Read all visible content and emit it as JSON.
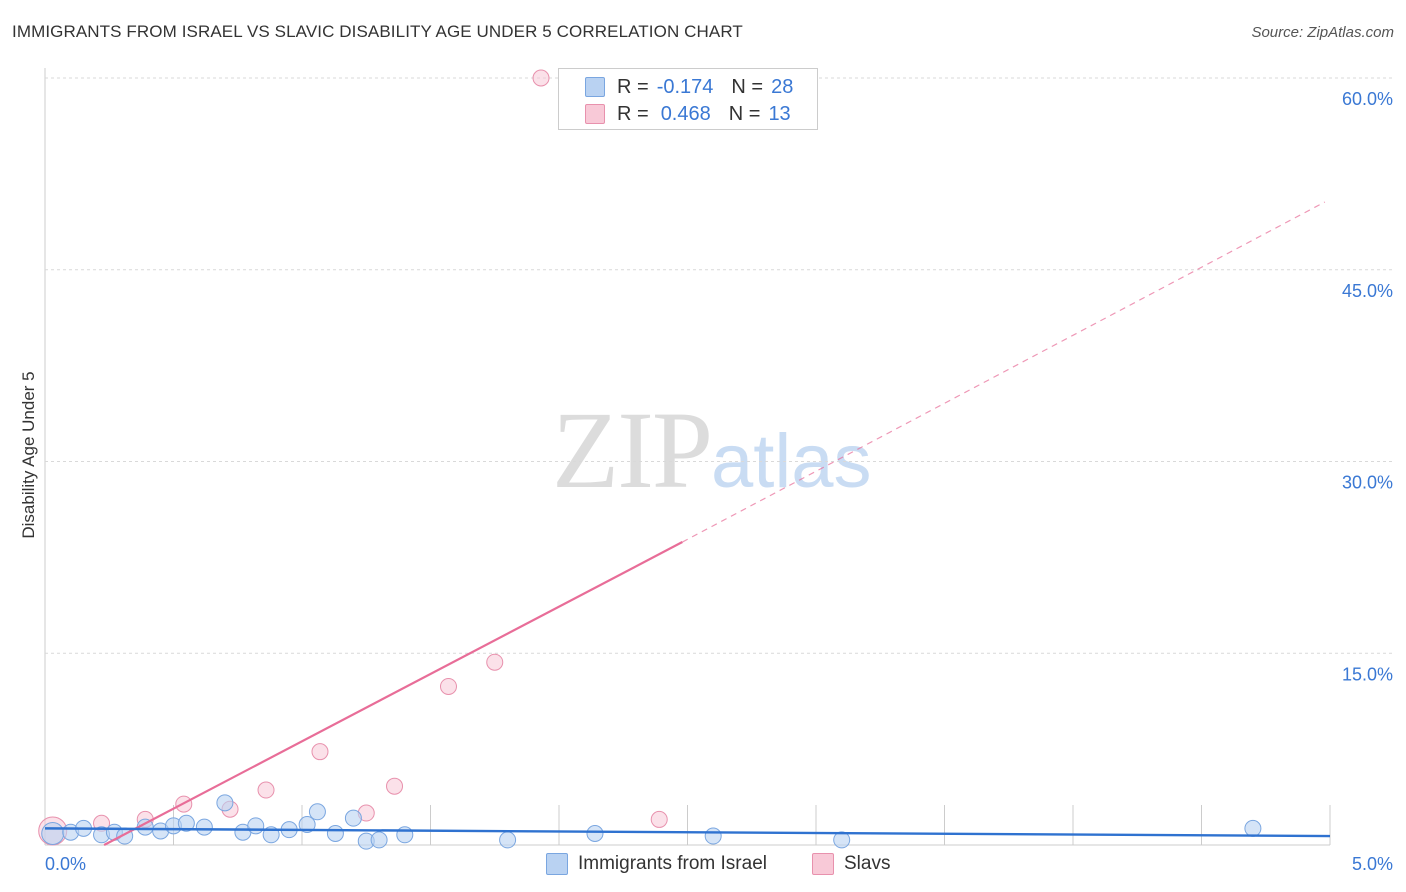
{
  "header": {
    "title": "IMMIGRANTS FROM ISRAEL VS SLAVIC DISABILITY AGE UNDER 5 CORRELATION CHART",
    "source": "Source: ZipAtlas.com"
  },
  "watermark": {
    "zip": "ZIP",
    "atlas": "atlas"
  },
  "legend": {
    "rows": [
      {
        "r_label": "R =",
        "r_value": "-0.174",
        "n_label": "N =",
        "n_value": "28"
      },
      {
        "r_label": "R =",
        "r_value": "0.468",
        "n_label": "N =",
        "n_value": "13"
      }
    ]
  },
  "colors": {
    "blue_fill": "#b9d2f2",
    "blue_stroke": "#7aa6e0",
    "blue_line": "#2f72d0",
    "pink_fill": "#f8c9d7",
    "pink_stroke": "#e891ad",
    "pink_line": "#e86d98",
    "grid": "#d9d9d9",
    "tick_label": "#3a78d4"
  },
  "chart_data": {
    "type": "scatter",
    "title": "IMMIGRANTS FROM ISRAEL VS SLAVIC DISABILITY AGE UNDER 5 CORRELATION CHART",
    "xlabel": "",
    "ylabel": "Disability Age Under 5",
    "xlim": [
      0,
      5
    ],
    "ylim": [
      0,
      60
    ],
    "x_tick_labels": [
      "0.0%",
      "5.0%"
    ],
    "y_ticks": [
      15,
      30,
      45,
      60
    ],
    "y_tick_labels": [
      "15.0%",
      "30.0%",
      "45.0%",
      "60.0%"
    ],
    "legend_position": "bottom",
    "series": [
      {
        "name": "Immigrants from Israel",
        "r": -0.174,
        "n": 28,
        "points": [
          [
            0.03,
            0.9
          ],
          [
            0.1,
            1.0
          ],
          [
            0.15,
            1.3
          ],
          [
            0.22,
            0.8
          ],
          [
            0.27,
            1.0
          ],
          [
            0.31,
            0.7
          ],
          [
            0.39,
            1.4
          ],
          [
            0.45,
            1.1
          ],
          [
            0.5,
            1.5
          ],
          [
            0.55,
            1.7
          ],
          [
            0.62,
            1.4
          ],
          [
            0.7,
            3.3
          ],
          [
            0.77,
            1.0
          ],
          [
            0.82,
            1.5
          ],
          [
            0.88,
            0.8
          ],
          [
            0.95,
            1.2
          ],
          [
            1.02,
            1.6
          ],
          [
            1.06,
            2.6
          ],
          [
            1.13,
            0.9
          ],
          [
            1.2,
            2.1
          ],
          [
            1.25,
            0.3
          ],
          [
            1.3,
            0.4
          ],
          [
            1.4,
            0.8
          ],
          [
            1.8,
            0.4
          ],
          [
            2.14,
            0.9
          ],
          [
            2.6,
            0.7
          ],
          [
            3.1,
            0.4
          ],
          [
            4.7,
            1.3
          ]
        ],
        "trend": {
          "x": [
            0.0,
            5.0
          ],
          "y": [
            1.3,
            0.7
          ]
        }
      },
      {
        "name": "Slavs",
        "r": 0.468,
        "n": 13,
        "points": [
          [
            0.03,
            1.1
          ],
          [
            0.22,
            1.7
          ],
          [
            0.39,
            2.0
          ],
          [
            0.54,
            3.2
          ],
          [
            0.72,
            2.8
          ],
          [
            0.86,
            4.3
          ],
          [
            1.07,
            7.3
          ],
          [
            1.25,
            2.5
          ],
          [
            1.36,
            4.6
          ],
          [
            1.57,
            12.4
          ],
          [
            1.75,
            14.3
          ],
          [
            1.93,
            60.0
          ],
          [
            2.39,
            2.0
          ]
        ],
        "trend": {
          "x": [
            0.23,
            2.48
          ],
          "y": [
            0.0,
            23.7
          ]
        },
        "trend_extension": {
          "x": [
            2.48,
            4.98
          ],
          "y": [
            23.7,
            50.3
          ]
        }
      }
    ]
  },
  "bottom_legend": [
    {
      "label": "Immigrants from Israel"
    },
    {
      "label": "Slavs"
    }
  ]
}
